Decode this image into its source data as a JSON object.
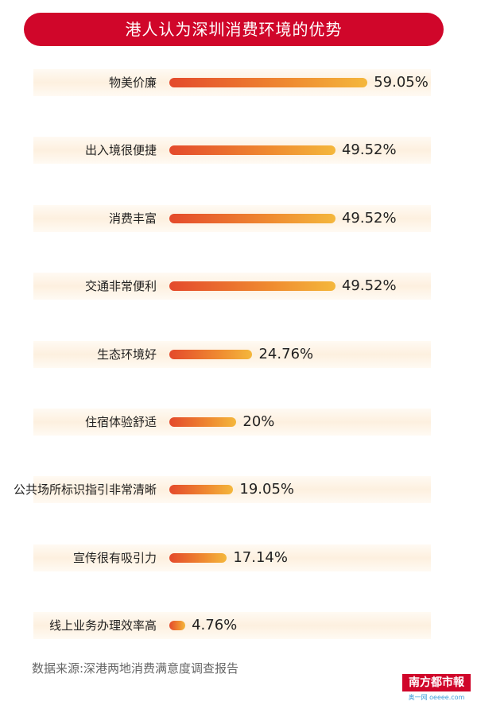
{
  "chart_data": {
    "type": "bar",
    "orientation": "horizontal",
    "title": "港人认为深圳消费环境的优势",
    "categories": [
      "物美价廉",
      "出入境很便捷",
      "消费丰富",
      "交通非常便利",
      "生态环境好",
      "住宿体验舒适",
      "公共场所标识指引非常清晰",
      "宣传很有吸引力",
      "线上业务办理效率高"
    ],
    "values": [
      59.05,
      49.52,
      49.52,
      49.52,
      24.76,
      20,
      19.05,
      17.14,
      4.76
    ],
    "data_labels": [
      "59.05%",
      "49.52%",
      "49.52%",
      "49.52%",
      "24.76%",
      "20%",
      "19.05%",
      "17.14%",
      "4.76%"
    ],
    "unit": "%",
    "grid": false,
    "colors": {
      "title_bg": "#d0062a",
      "bar_start": "#e44a2c",
      "bar_end": "#f4b73c",
      "row_bg": "#fdf0df"
    }
  },
  "source": "数据来源:深港两地消费满意度调查报告",
  "logo": {
    "name": "南方都市報",
    "sub": "奥一网 oeeee.com"
  }
}
